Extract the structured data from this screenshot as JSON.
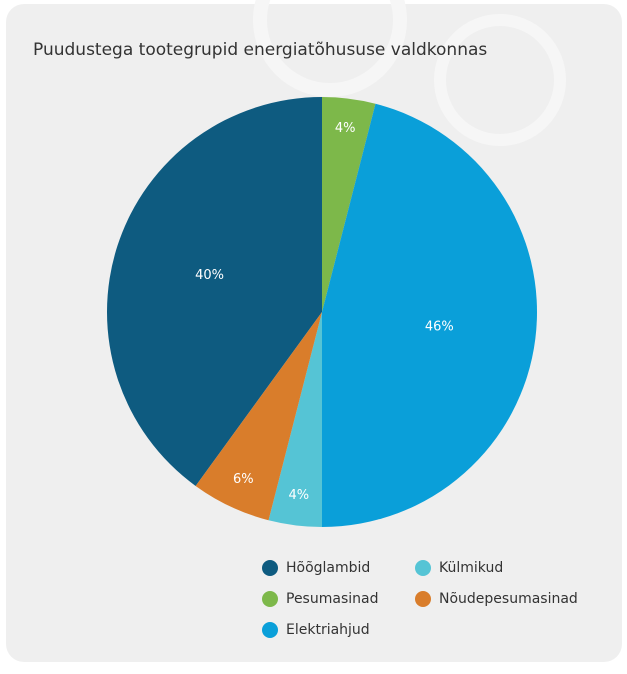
{
  "chart_data": {
    "type": "pie",
    "title": "Puudustega tootegrupid energiatõhususe valdkonnas",
    "categories": [
      "Hõõglambid",
      "Pesumasinad",
      "Elektriahjud",
      "Külmikud",
      "Nõudepesumasinad"
    ],
    "values": [
      40,
      4,
      46,
      4,
      6
    ],
    "value_labels": [
      "40%",
      "4%",
      "46%",
      "4%",
      "6%"
    ],
    "colors": [
      "#0e5b80",
      "#7db84a",
      "#0a9fd9",
      "#55c4d5",
      "#d97d2b"
    ]
  }
}
